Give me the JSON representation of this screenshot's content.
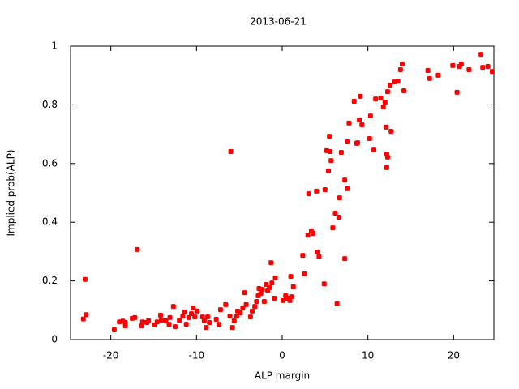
{
  "chart_data": {
    "type": "scatter",
    "title": "2013-06-21",
    "x_label": "ALP margin",
    "y_label": "Implied prob(ALP)",
    "xlim": [
      -24.7,
      24.7
    ],
    "ylim": [
      0,
      1
    ],
    "xticks": [
      -20,
      -10,
      0,
      10,
      20
    ],
    "yticks": [
      0,
      0.2,
      0.4,
      0.6,
      0.8,
      1
    ],
    "color": "#ff0000",
    "x": [
      -23.2,
      -23.0,
      -22.9,
      -19.6,
      -19.0,
      -18.6,
      -18.3,
      -18.3,
      -17.5,
      -17.2,
      -16.9,
      -16.4,
      -16.3,
      -15.8,
      -15.6,
      -14.9,
      -14.6,
      -14.2,
      -14.1,
      -13.6,
      -13.2,
      -13.1,
      -12.7,
      -12.5,
      -12.0,
      -11.6,
      -11.4,
      -11.2,
      -10.9,
      -10.6,
      -10.4,
      -10.2,
      -9.9,
      -9.3,
      -9.1,
      -8.9,
      -8.7,
      -8.5,
      -7.7,
      -7.4,
      -7.2,
      -6.6,
      -6.1,
      -6.0,
      -5.8,
      -5.6,
      -5.3,
      -5.2,
      -4.9,
      -4.6,
      -4.4,
      -4.2,
      -3.7,
      -3.5,
      -3.2,
      -3.0,
      -2.8,
      -2.7,
      -2.5,
      -2.3,
      -2.1,
      -1.9,
      -1.7,
      -1.5,
      -1.3,
      -1.2,
      -0.9,
      -0.8,
      0.1,
      0.4,
      0.6,
      0.9,
      1.0,
      1.1,
      1.3,
      2.4,
      2.6,
      3.0,
      3.1,
      3.4,
      3.6,
      4.0,
      4.1,
      4.3,
      4.9,
      5.0,
      5.2,
      5.4,
      5.5,
      5.6,
      5.7,
      5.9,
      6.2,
      6.4,
      6.6,
      6.7,
      6.9,
      7.3,
      7.3,
      7.6,
      7.6,
      7.8,
      8.4,
      8.7,
      9.0,
      9.1,
      9.3,
      8.8,
      10.2,
      10.3,
      10.7,
      10.9,
      11.5,
      11.8,
      12.0,
      12.1,
      12.2,
      12.3,
      12.2,
      12.3,
      12.6,
      12.7,
      13.1,
      13.5,
      13.8,
      14.0,
      14.2,
      17.0,
      17.2,
      18.2,
      19.9,
      20.4,
      20.7,
      20.9,
      21.8,
      23.2,
      23.4,
      24.0,
      24.5
    ],
    "y": [
      0.07,
      0.205,
      0.085,
      0.033,
      0.06,
      0.063,
      0.047,
      0.058,
      0.072,
      0.075,
      0.307,
      0.047,
      0.06,
      0.058,
      0.064,
      0.05,
      0.06,
      0.083,
      0.066,
      0.064,
      0.052,
      0.075,
      0.113,
      0.044,
      0.066,
      0.08,
      0.094,
      0.052,
      0.075,
      0.088,
      0.108,
      0.077,
      0.097,
      0.077,
      0.064,
      0.041,
      0.077,
      0.058,
      0.069,
      0.052,
      0.102,
      0.119,
      0.08,
      0.641,
      0.041,
      0.064,
      0.08,
      0.097,
      0.091,
      0.108,
      0.16,
      0.119,
      0.077,
      0.097,
      0.113,
      0.13,
      0.149,
      0.174,
      0.157,
      0.171,
      0.13,
      0.188,
      0.168,
      0.177,
      0.262,
      0.193,
      0.141,
      0.21,
      0.133,
      0.149,
      0.141,
      0.133,
      0.215,
      0.146,
      0.18,
      0.287,
      0.224,
      0.356,
      0.497,
      0.37,
      0.362,
      0.506,
      0.298,
      0.282,
      0.19,
      0.511,
      0.644,
      0.575,
      0.693,
      0.641,
      0.61,
      0.381,
      0.431,
      0.122,
      0.417,
      0.483,
      0.638,
      0.276,
      0.544,
      0.514,
      0.674,
      0.738,
      0.812,
      0.669,
      0.749,
      0.829,
      0.732,
      0.671,
      0.685,
      0.762,
      0.646,
      0.82,
      0.823,
      0.793,
      0.809,
      0.724,
      0.633,
      0.622,
      0.586,
      0.845,
      0.867,
      0.71,
      0.878,
      0.881,
      0.92,
      0.939,
      0.848,
      0.917,
      0.89,
      0.901,
      0.934,
      0.843,
      0.931,
      0.939,
      0.92,
      0.972,
      0.928,
      0.931,
      0.914
    ]
  }
}
